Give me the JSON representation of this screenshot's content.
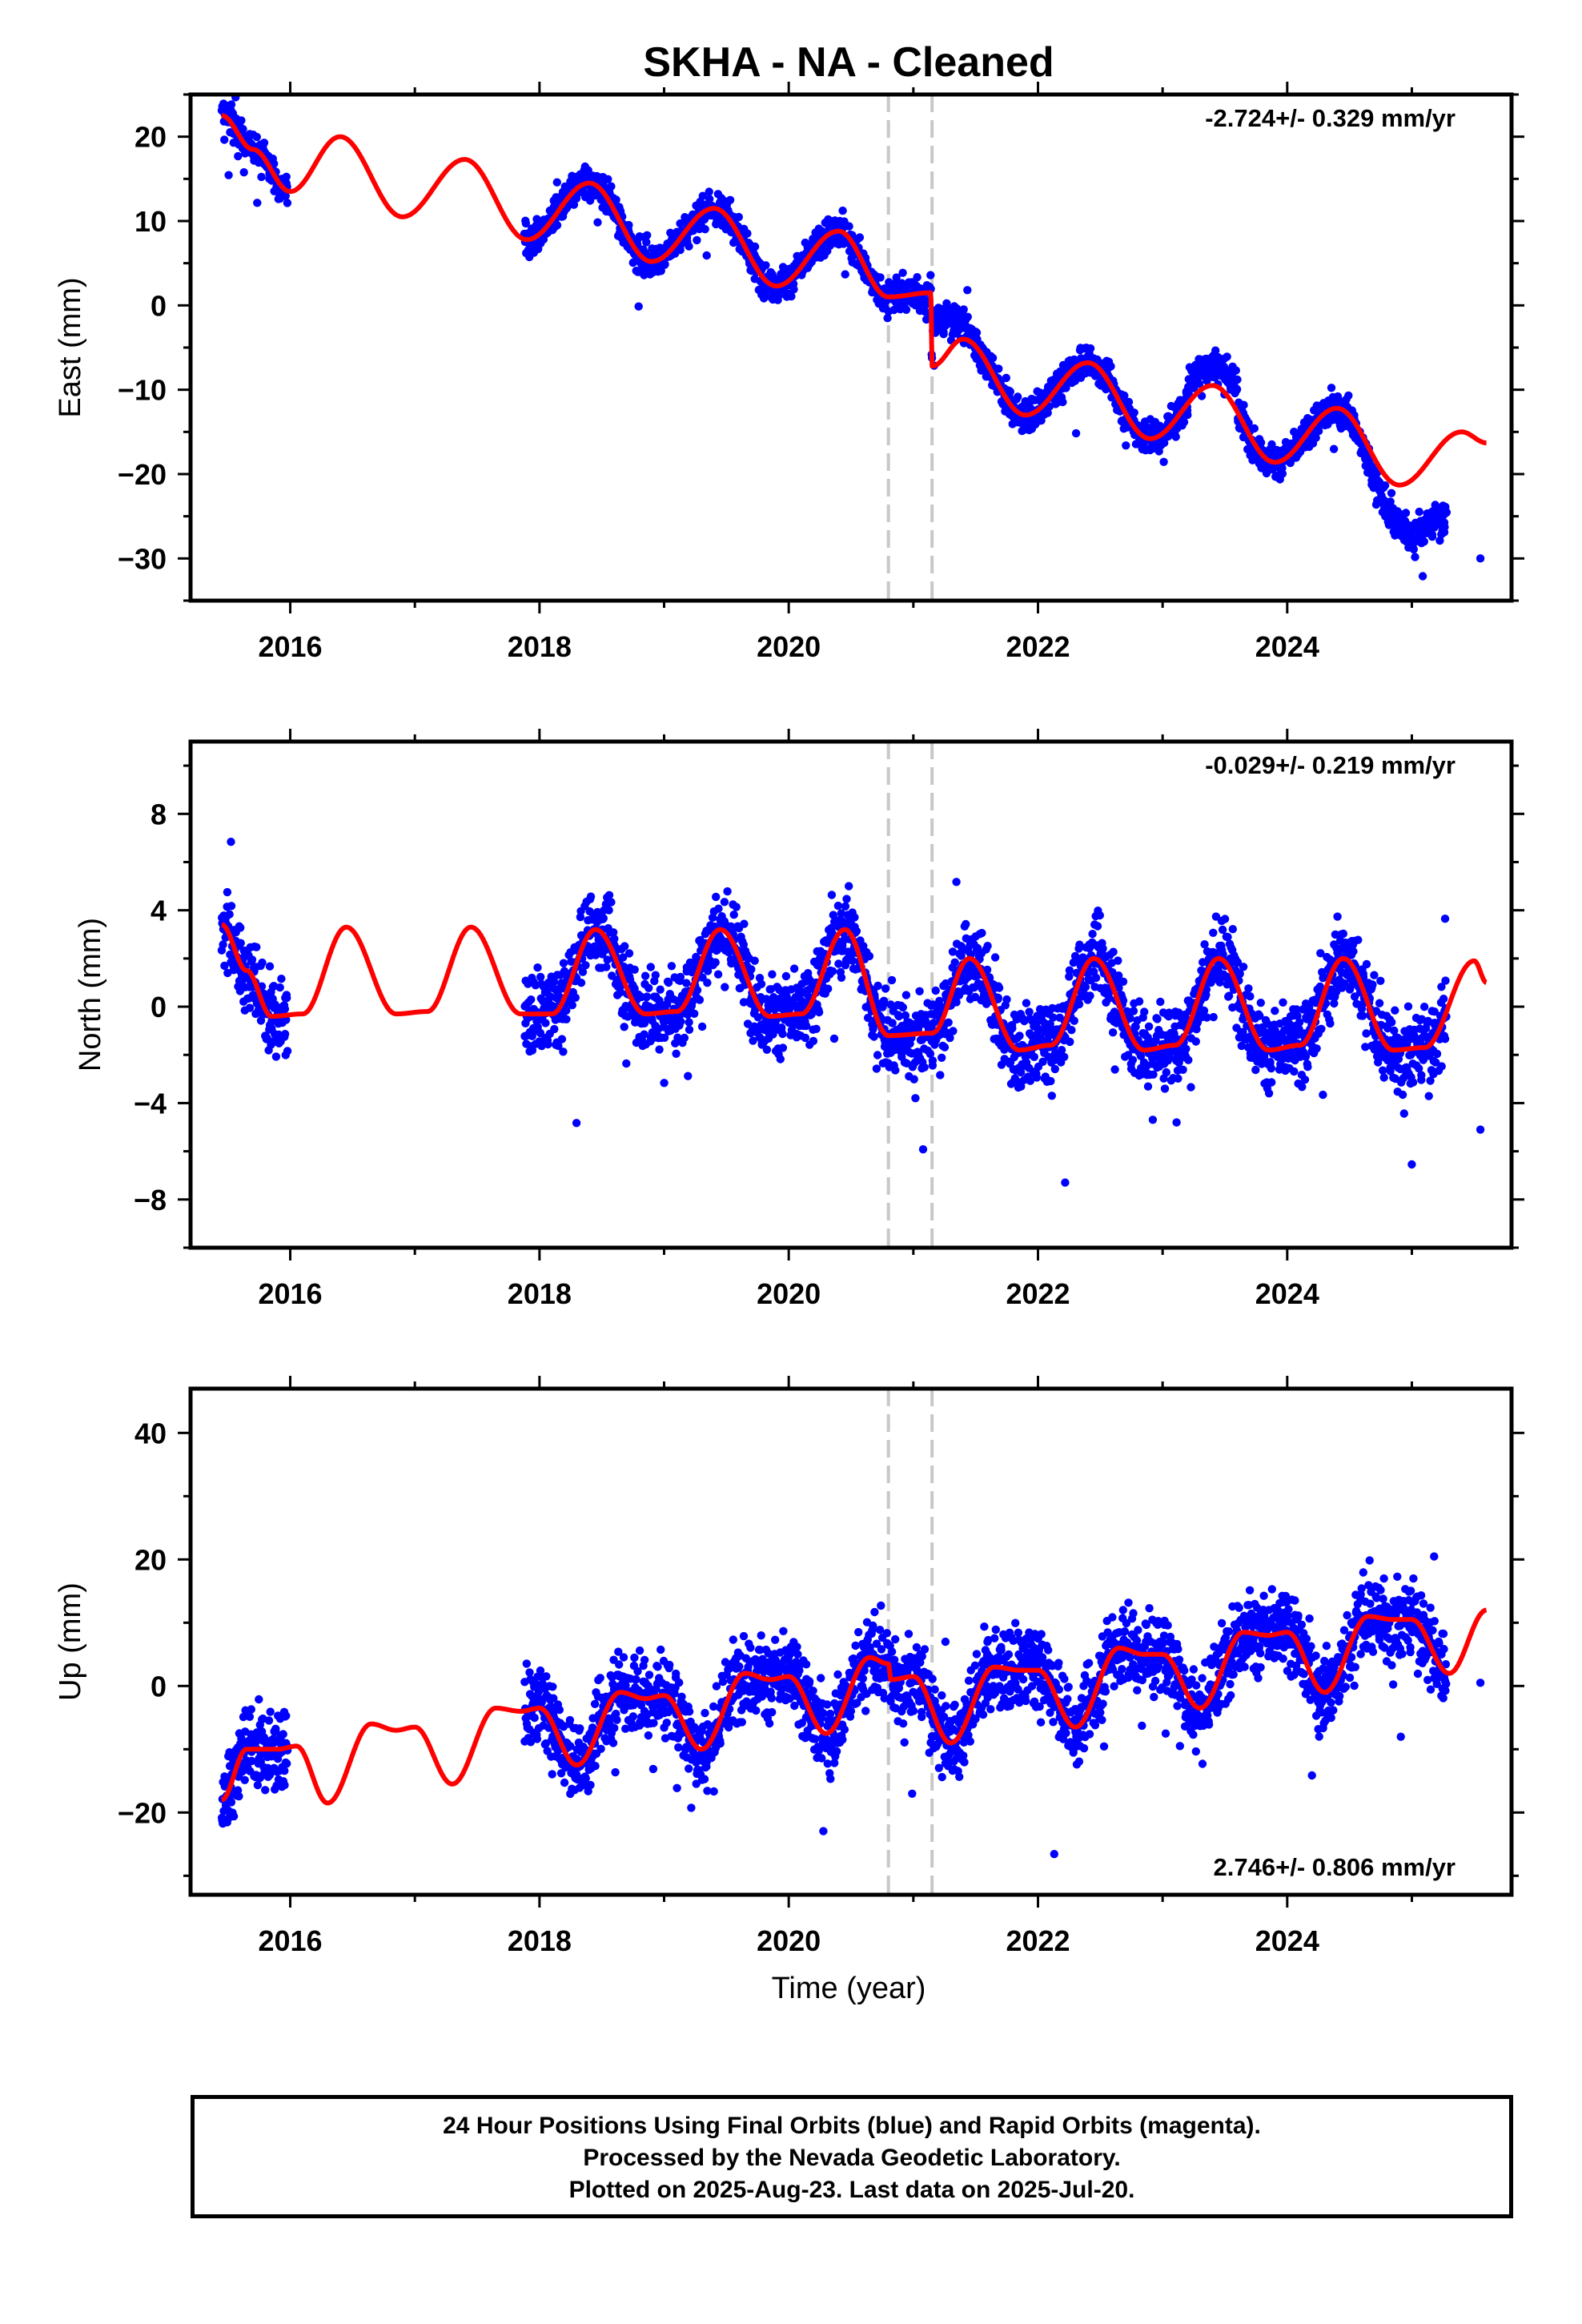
{
  "title": "SKHA  - NA - Cleaned",
  "xlabel": "Time (year)",
  "colors": {
    "points": "#0000ff",
    "model": "#ff0000",
    "offsets": "#c8c8c8",
    "frame": "#000000"
  },
  "footer": {
    "line1": "24 Hour Positions Using Final Orbits (blue) and Rapid Orbits (magenta).",
    "line2": "Processed by the Nevada Geodetic Laboratory.",
    "line3": "Plotted on 2025-Aug-23. Last data on 2025-Jul-20."
  },
  "chart_data": [
    {
      "type": "scatter",
      "component": "east",
      "ylabel": "East (mm)",
      "rate_label": "-2.724+/- 0.329 mm/yr",
      "rate_position": "top-right",
      "xlim": [
        2015.2,
        2025.8
      ],
      "ylim": [
        -35,
        25
      ],
      "xticks": [
        2016,
        2018,
        2020,
        2022,
        2024
      ],
      "yticks": [
        20,
        10,
        0,
        -10,
        -20,
        -30
      ],
      "offset_epochs": [
        2020.8,
        2021.15
      ],
      "model": {
        "rate": -2.724,
        "annual_amplitude": 4.7,
        "annual_phase_peak": 0.42,
        "intercept_2015": 22.0,
        "step_at_2021.15": -8.5,
        "samples": [
          [
            2015.45,
            22.5
          ],
          [
            2015.7,
            18.5
          ],
          [
            2016.0,
            13.5
          ],
          [
            2016.4,
            20.0
          ],
          [
            2016.9,
            10.5
          ],
          [
            2017.4,
            17.3
          ],
          [
            2017.9,
            7.8
          ],
          [
            2018.4,
            14.5
          ],
          [
            2018.9,
            5.2
          ],
          [
            2019.4,
            11.5
          ],
          [
            2019.9,
            2.3
          ],
          [
            2020.4,
            8.8
          ],
          [
            2020.8,
            1.0
          ],
          [
            2021.14,
            1.5
          ],
          [
            2021.15,
            -7.2
          ],
          [
            2021.4,
            -4.0
          ],
          [
            2021.9,
            -13.0
          ],
          [
            2022.4,
            -6.8
          ],
          [
            2022.9,
            -15.8
          ],
          [
            2023.4,
            -9.5
          ],
          [
            2023.9,
            -18.6
          ],
          [
            2024.4,
            -12.2
          ],
          [
            2024.9,
            -21.3
          ],
          [
            2025.4,
            -15.0
          ],
          [
            2025.6,
            -16.3
          ]
        ]
      }
    },
    {
      "type": "scatter",
      "component": "north",
      "ylabel": "North (mm)",
      "rate_label": "-0.029+/- 0.219 mm/yr",
      "rate_position": "top-right",
      "xlim": [
        2015.2,
        2025.8
      ],
      "ylim": [
        -10,
        11
      ],
      "xticks": [
        2016,
        2018,
        2020,
        2022,
        2024
      ],
      "yticks": [
        8,
        4,
        0,
        -4,
        -8
      ],
      "offset_epochs": [
        2020.8,
        2021.15
      ],
      "model": {
        "samples": [
          [
            2015.45,
            3.4
          ],
          [
            2015.65,
            1.5
          ],
          [
            2015.85,
            -0.4
          ],
          [
            2016.1,
            -0.3
          ],
          [
            2016.45,
            3.3
          ],
          [
            2016.85,
            -0.3
          ],
          [
            2017.1,
            -0.2
          ],
          [
            2017.45,
            3.3
          ],
          [
            2017.85,
            -0.3
          ],
          [
            2018.1,
            -0.3
          ],
          [
            2018.45,
            3.2
          ],
          [
            2018.85,
            -0.3
          ],
          [
            2019.1,
            -0.2
          ],
          [
            2019.45,
            3.2
          ],
          [
            2019.85,
            -0.4
          ],
          [
            2020.1,
            -0.3
          ],
          [
            2020.45,
            3.2
          ],
          [
            2020.8,
            -1.2
          ],
          [
            2021.15,
            -1.1
          ],
          [
            2021.45,
            2.0
          ],
          [
            2021.85,
            -1.8
          ],
          [
            2022.1,
            -1.6
          ],
          [
            2022.45,
            2.0
          ],
          [
            2022.85,
            -1.8
          ],
          [
            2023.1,
            -1.6
          ],
          [
            2023.45,
            2.0
          ],
          [
            2023.85,
            -1.8
          ],
          [
            2024.1,
            -1.6
          ],
          [
            2024.45,
            2.0
          ],
          [
            2024.85,
            -1.8
          ],
          [
            2025.1,
            -1.7
          ],
          [
            2025.5,
            1.9
          ],
          [
            2025.6,
            1.0
          ]
        ]
      }
    },
    {
      "type": "scatter",
      "component": "up",
      "ylabel": "Up (mm)",
      "rate_label": "2.746+/- 0.806 mm/yr",
      "rate_position": "bottom-right",
      "xlim": [
        2015.2,
        2025.8
      ],
      "ylim": [
        -33,
        47
      ],
      "xticks": [
        2016,
        2018,
        2020,
        2022,
        2024
      ],
      "yticks": [
        40,
        20,
        0,
        -20
      ],
      "offset_epochs": [
        2020.8,
        2021.15
      ],
      "model": {
        "samples": [
          [
            2015.45,
            -18.0
          ],
          [
            2015.65,
            -10.0
          ],
          [
            2015.9,
            -10.0
          ],
          [
            2016.05,
            -9.5
          ],
          [
            2016.3,
            -18.5
          ],
          [
            2016.65,
            -6.0
          ],
          [
            2016.85,
            -7.0
          ],
          [
            2017.0,
            -6.5
          ],
          [
            2017.3,
            -15.5
          ],
          [
            2017.65,
            -3.5
          ],
          [
            2017.85,
            -4.0
          ],
          [
            2018.0,
            -3.5
          ],
          [
            2018.3,
            -12.5
          ],
          [
            2018.65,
            -1.0
          ],
          [
            2018.85,
            -2.0
          ],
          [
            2019.0,
            -1.5
          ],
          [
            2019.3,
            -10.0
          ],
          [
            2019.65,
            2.0
          ],
          [
            2019.85,
            1.0
          ],
          [
            2020.0,
            1.5
          ],
          [
            2020.3,
            -7.5
          ],
          [
            2020.65,
            4.5
          ],
          [
            2020.8,
            3.5
          ],
          [
            2020.82,
            1.0
          ],
          [
            2021.0,
            1.5
          ],
          [
            2021.3,
            -9.0
          ],
          [
            2021.65,
            3.0
          ],
          [
            2021.85,
            2.5
          ],
          [
            2022.0,
            2.5
          ],
          [
            2022.3,
            -6.5
          ],
          [
            2022.65,
            6.0
          ],
          [
            2022.85,
            5.0
          ],
          [
            2023.0,
            5.0
          ],
          [
            2023.3,
            -3.5
          ],
          [
            2023.65,
            8.5
          ],
          [
            2023.85,
            8.0
          ],
          [
            2024.0,
            8.5
          ],
          [
            2024.3,
            -1.0
          ],
          [
            2024.65,
            11.0
          ],
          [
            2024.85,
            10.5
          ],
          [
            2025.0,
            10.5
          ],
          [
            2025.3,
            2.0
          ],
          [
            2025.6,
            12.0
          ]
        ]
      }
    }
  ]
}
